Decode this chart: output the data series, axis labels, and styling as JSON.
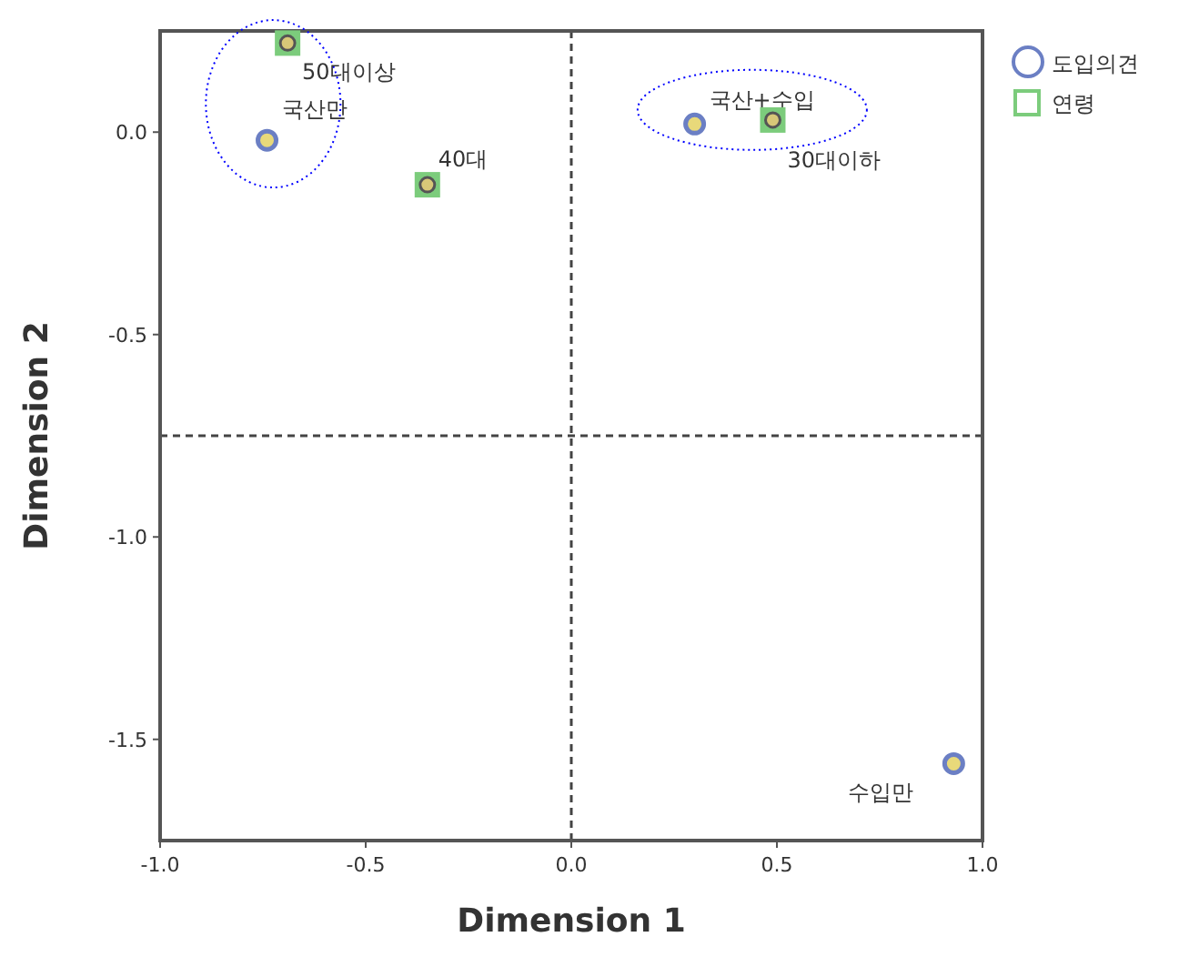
{
  "chart_data": {
    "type": "scatter",
    "xlabel": "Dimension 1",
    "ylabel": "Dimension 2",
    "xlim": [
      -1.0,
      1.0
    ],
    "ylim": [
      -1.75,
      0.25
    ],
    "xticks": [
      {
        "value": -1,
        "label": "-1.0"
      },
      {
        "value": -0.5,
        "label": "-0.5"
      },
      {
        "value": 0,
        "label": "0.0"
      },
      {
        "value": 0.5,
        "label": "0.5"
      },
      {
        "value": 1,
        "label": "1.0"
      }
    ],
    "yticks": [
      {
        "value": 0,
        "label": "0.0"
      },
      {
        "value": -0.5,
        "label": "-0.5"
      },
      {
        "value": -1,
        "label": "-1.0"
      },
      {
        "value": -1.5,
        "label": "-1.5"
      }
    ],
    "series": [
      {
        "name": "도입의견",
        "color": "#6b7fc4",
        "marker": "circle",
        "x": [
          -0.74,
          0.3,
          0.93
        ],
        "values": [
          -0.02,
          0.02,
          -1.56
        ]
      },
      {
        "name": "연령",
        "color": "#7ccc7c",
        "marker": "square",
        "x": [
          -0.69,
          -0.35,
          0.49
        ],
        "values": [
          0.22,
          -0.13,
          0.03
        ]
      }
    ],
    "annotations": [
      {
        "text": "국산만",
        "x": -0.74,
        "y": -0.02
      },
      {
        "text": "국산+수입",
        "x": 0.3,
        "y": 0.02
      },
      {
        "text": "수입만",
        "x": 0.93,
        "y": -1.56
      },
      {
        "text": "50대이상",
        "x": -0.69,
        "y": 0.22
      },
      {
        "text": "40대",
        "x": -0.35,
        "y": -0.13
      },
      {
        "text": "30대이하",
        "x": 0.49,
        "y": 0.03
      }
    ],
    "ref_lines": [
      {
        "axis": "x",
        "value": 0,
        "line_style": "dashed"
      },
      {
        "axis": "y",
        "value": -0.75,
        "line_style": "dashed"
      }
    ],
    "grid": false,
    "legend": "top right"
  }
}
